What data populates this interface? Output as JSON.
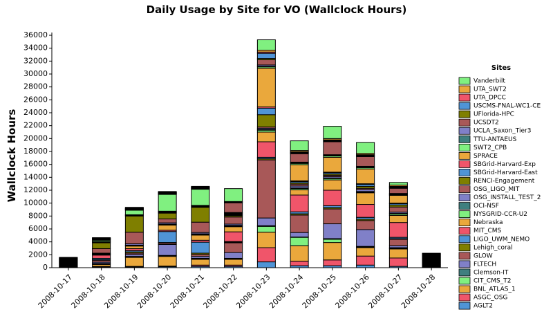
{
  "chart_data": {
    "type": "stacked_bar",
    "title": "Daily Usage by Site for VO (Wallclock Hours)",
    "y_label": "Wallclock Hours",
    "legend_title": "Sites",
    "legend": "right",
    "categories": [
      "2008-10-17",
      "2008-10-18",
      "2008-10-19",
      "2008-10-20",
      "2008-10-21",
      "2008-10-22",
      "2008-10-23",
      "2008-10-24",
      "2008-10-25",
      "2008-10-26",
      "2008-10-27",
      "2008-10-28"
    ],
    "ylim": [
      0,
      36000
    ],
    "yticks": [
      0,
      2000,
      4000,
      6000,
      8000,
      10000,
      12000,
      14000,
      16000,
      18000,
      20000,
      22000,
      24000,
      26000,
      28000,
      30000,
      32000,
      34000,
      36000
    ],
    "series": [
      {
        "name": "AGLT2",
        "color": "#5094d6",
        "values": [
          57,
          100,
          100,
          150,
          200,
          200,
          900,
          300,
          300,
          400,
          200,
          80
        ]
      },
      {
        "name": "ASGC_OSG",
        "color": "#f0556a",
        "values": [
          57,
          100,
          100,
          100,
          200,
          200,
          2200,
          700,
          900,
          1400,
          1300,
          80
        ]
      },
      {
        "name": "BNL_ATLAS_1",
        "color": "#eaa83c",
        "values": [
          57,
          300,
          1400,
          1500,
          900,
          900,
          2400,
          2400,
          2700,
          1300,
          1400,
          80
        ]
      },
      {
        "name": "CIT_CMS_T2",
        "color": "#80f080",
        "values": [
          57,
          100,
          100,
          100,
          100,
          100,
          900,
          1300,
          500,
          100,
          100,
          80
        ]
      },
      {
        "name": "Clemson-IT",
        "color": "#3f7f7f",
        "values": [
          57,
          50,
          50,
          50,
          50,
          50,
          100,
          50,
          100,
          100,
          100,
          80
        ]
      },
      {
        "name": "FLTECH",
        "color": "#8080c8",
        "values": [
          57,
          200,
          300,
          1700,
          300,
          900,
          1200,
          700,
          2300,
          2600,
          300,
          80
        ]
      },
      {
        "name": "GLOW",
        "color": "#a85858",
        "values": [
          57,
          300,
          200,
          200,
          300,
          1500,
          9000,
          2700,
          2300,
          1400,
          1000,
          80
        ]
      },
      {
        "name": "Lehigh_coral",
        "color": "#7f7f00",
        "values": [
          57,
          100,
          200,
          100,
          200,
          100,
          200,
          200,
          200,
          200,
          100,
          80
        ]
      },
      {
        "name": "LIGO_UWM_NEMO",
        "color": "#5094d6",
        "values": [
          57,
          200,
          200,
          1700,
          1700,
          100,
          200,
          300,
          300,
          300,
          200,
          80
        ]
      },
      {
        "name": "MIT_CMS",
        "color": "#f0556a",
        "values": [
          57,
          500,
          300,
          200,
          300,
          1500,
          2400,
          2600,
          2400,
          2000,
          2300,
          80
        ]
      },
      {
        "name": "Nebraska",
        "color": "#eaa83c",
        "values": [
          57,
          100,
          400,
          800,
          800,
          800,
          1500,
          800,
          1600,
          1800,
          1100,
          80
        ]
      },
      {
        "name": "NYSGRID-CCR-U2",
        "color": "#80f080",
        "values": [
          57,
          50,
          100,
          100,
          100,
          100,
          300,
          200,
          200,
          100,
          200,
          80
        ]
      },
      {
        "name": "OCI-NSF",
        "color": "#3f7f7f",
        "values": [
          57,
          50,
          50,
          50,
          100,
          100,
          100,
          100,
          100,
          100,
          100,
          80
        ]
      },
      {
        "name": "OSG_INSTALL_TEST_2",
        "color": "#8080c8",
        "values": [
          57,
          100,
          200,
          200,
          200,
          200,
          200,
          300,
          200,
          300,
          200,
          80
        ]
      },
      {
        "name": "OSG_LIGO_MIT",
        "color": "#a85858",
        "values": [
          57,
          700,
          1800,
          600,
          1600,
          1100,
          200,
          300,
          200,
          200,
          800,
          80
        ]
      },
      {
        "name": "RENCI-Engagement",
        "color": "#7f7f00",
        "values": [
          57,
          900,
          2500,
          900,
          2300,
          200,
          1900,
          200,
          200,
          300,
          300,
          80
        ]
      },
      {
        "name": "SBGrid-Harvard-East",
        "color": "#5094d6",
        "values": [
          57,
          100,
          100,
          100,
          100,
          100,
          1000,
          200,
          200,
          300,
          200,
          80
        ]
      },
      {
        "name": "SBGrid-Harvard-Exp",
        "color": "#f0556a",
        "values": [
          57,
          50,
          50,
          100,
          100,
          100,
          200,
          100,
          100,
          100,
          100,
          80
        ]
      },
      {
        "name": "SPRACE",
        "color": "#eaa83c",
        "values": [
          57,
          50,
          50,
          100,
          100,
          100,
          6000,
          2500,
          2300,
          2300,
          1200,
          80
        ]
      },
      {
        "name": "SWT2_CPB",
        "color": "#80f080",
        "values": [
          57,
          200,
          700,
          2600,
          2500,
          100,
          200,
          200,
          200,
          200,
          100,
          80
        ]
      },
      {
        "name": "TTU-ANTAEUS",
        "color": "#3f7f7f",
        "values": [
          57,
          50,
          50,
          50,
          50,
          50,
          100,
          100,
          100,
          100,
          100,
          80
        ]
      },
      {
        "name": "UCLA_Saxon_Tier3",
        "color": "#8080c8",
        "values": [
          57,
          50,
          50,
          50,
          50,
          50,
          200,
          100,
          100,
          100,
          100,
          80
        ]
      },
      {
        "name": "UCSDT2",
        "color": "#a85858",
        "values": [
          57,
          50,
          50,
          50,
          50,
          1500,
          800,
          1300,
          2000,
          1500,
          800,
          80
        ]
      },
      {
        "name": "UFlorida-HPC",
        "color": "#7f7f00",
        "values": [
          57,
          50,
          50,
          50,
          50,
          50,
          200,
          100,
          100,
          100,
          100,
          80
        ]
      },
      {
        "name": "USCMS-FNAL-WC1-CE",
        "color": "#5094d6",
        "values": [
          57,
          50,
          50,
          50,
          50,
          50,
          800,
          100,
          100,
          100,
          100,
          80
        ]
      },
      {
        "name": "UTA_DPCC",
        "color": "#f0556a",
        "values": [
          57,
          50,
          50,
          50,
          50,
          50,
          200,
          100,
          100,
          100,
          100,
          80
        ]
      },
      {
        "name": "UTA_SWT2",
        "color": "#eaa83c",
        "values": [
          57,
          50,
          50,
          50,
          50,
          50,
          300,
          200,
          200,
          200,
          200,
          80
        ]
      },
      {
        "name": "Vanderbilt",
        "color": "#80f080",
        "values": [
          57,
          50,
          100,
          100,
          100,
          2000,
          1600,
          1500,
          1900,
          1700,
          400,
          80
        ]
      }
    ]
  }
}
